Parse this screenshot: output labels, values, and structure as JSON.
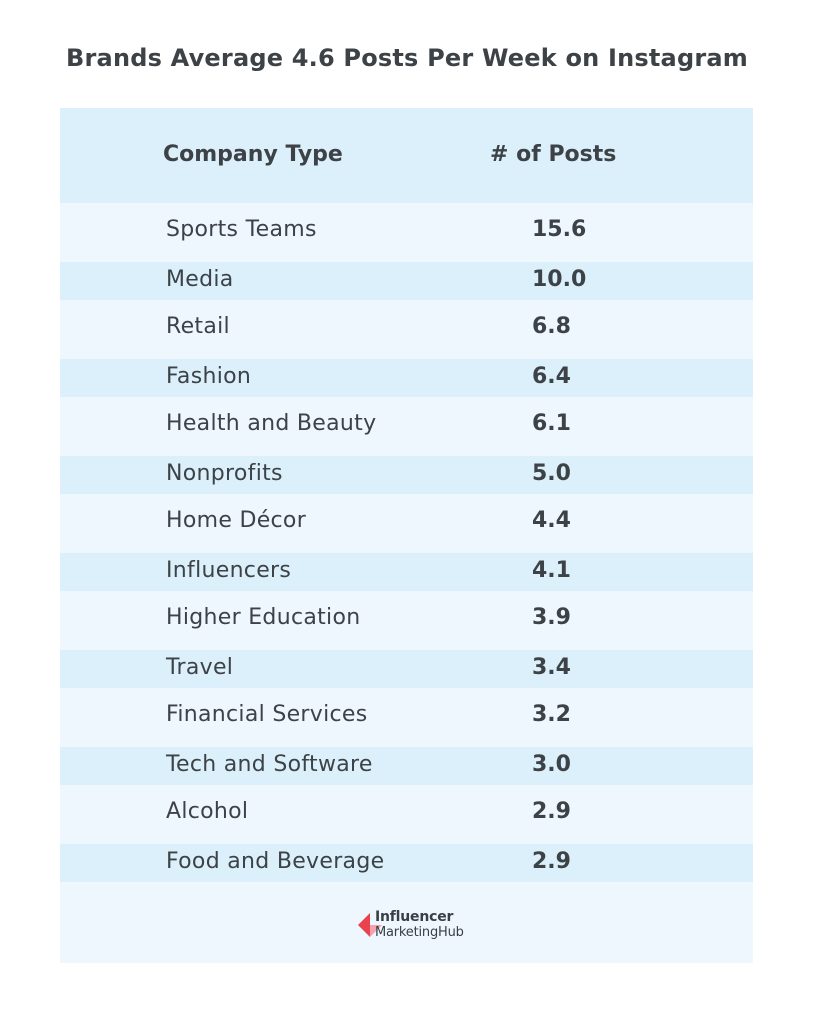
{
  "chart_data": {
    "type": "table",
    "title": "Brands Average 4.6 Posts Per Week on Instagram",
    "columns": [
      "Company Type",
      "# of Posts"
    ],
    "categories": [
      "Sports Teams",
      "Media",
      "Retail",
      "Fashion",
      "Health and Beauty",
      "Nonprofits",
      "Home Décor",
      "Influencers",
      "Higher Education",
      "Travel",
      "Financial Services",
      "Tech and Software",
      "Alcohol",
      "Food and Beverage"
    ],
    "values": [
      "15.6",
      "10.0",
      "6.8",
      "6.4",
      "6.1",
      "5.0",
      "4.4",
      "4.1",
      "3.9",
      "3.4",
      "3.2",
      "3.0",
      "2.9",
      "2.9"
    ]
  },
  "logo": {
    "line1": "Influencer",
    "line2": "MarketingHub"
  },
  "colors": {
    "header_bg": "#dcf0fb",
    "row_light": "#eef7fe",
    "row_dark": "#dcf0fb",
    "logo_red": "#e8424f",
    "logo_pink": "#f6a1b0"
  }
}
